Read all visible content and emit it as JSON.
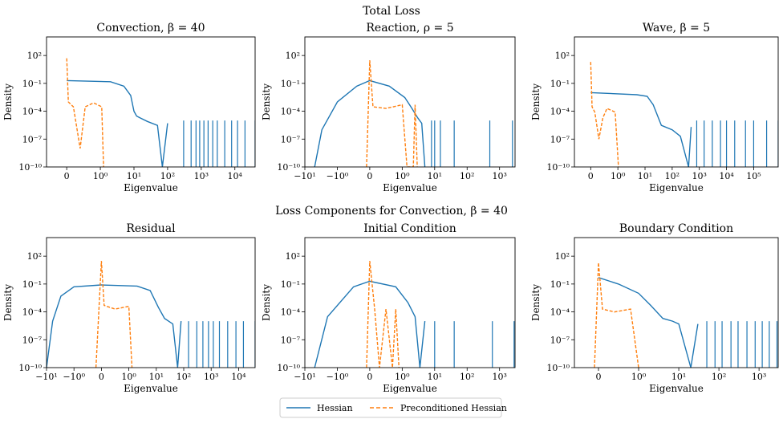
{
  "figure": {
    "row_titles": [
      "Total Loss",
      "Loss Components for Convection, β = 40"
    ],
    "legend": [
      {
        "label": "Hessian",
        "color": "#1f77b4",
        "dash": "solid"
      },
      {
        "label": "Preconditioned Hessian",
        "color": "#ff7f0e",
        "dash": "dashed"
      }
    ]
  },
  "chart_data": [
    {
      "type": "line",
      "title": "Convection, β = 40",
      "xlabel": "Eigenvalue",
      "ylabel": "Density",
      "xscale": "symlog",
      "yscale": "log",
      "ylim": [
        1e-10,
        10000
      ],
      "xlim": [
        -0.6,
        40000
      ],
      "xticks": [
        "0",
        "10⁰",
        "10¹",
        "10²",
        "10³",
        "10⁴"
      ],
      "yticks": [
        "10⁻¹⁰",
        "10⁻⁷",
        "10⁻⁴",
        "10⁻¹",
        "10²"
      ],
      "series": [
        {
          "name": "Hessian",
          "points": [
            [
              0,
              0.2
            ],
            [
              2,
              0.15
            ],
            [
              5,
              0.05
            ],
            [
              8,
              0.005
            ],
            [
              10,
              0.0001
            ],
            [
              12,
              3e-05
            ],
            [
              15,
              2e-05
            ],
            [
              25,
              8e-06
            ],
            [
              50,
              3e-06
            ],
            [
              70,
              1e-10
            ],
            [
              100,
              5e-06
            ]
          ],
          "spikes": [
            300,
            500,
            700,
            900,
            1200,
            1600,
            2200,
            3000,
            5000,
            8000,
            12000,
            20000,
            40000
          ]
        },
        {
          "name": "Preconditioned Hessian",
          "points": [
            [
              0,
              50
            ],
            [
              0.05,
              0.001
            ],
            [
              0.2,
              0.0003
            ],
            [
              0.4,
              1e-08
            ],
            [
              0.55,
              0.0003
            ],
            [
              0.8,
              0.0008
            ],
            [
              1.1,
              0.0003
            ],
            [
              1.25,
              1e-10
            ]
          ]
        }
      ]
    },
    {
      "type": "line",
      "title": "Reaction, ρ = 5",
      "xlabel": "Eigenvalue",
      "ylabel": "Density",
      "xscale": "symlog",
      "yscale": "log",
      "ylim": [
        1e-10,
        10000
      ],
      "xlim": [
        -10,
        3000
      ],
      "xticks": [
        "−10¹",
        "−10⁰",
        "0",
        "10⁰",
        "10¹",
        "10²",
        "10³"
      ],
      "yticks": [
        "10⁻¹⁰",
        "10⁻⁷",
        "10⁻⁴",
        "10⁻¹",
        "10²"
      ],
      "series": [
        {
          "name": "Hessian",
          "points": [
            [
              -5,
              1e-10
            ],
            [
              -3,
              1e-06
            ],
            [
              -1,
              0.001
            ],
            [
              -0.4,
              0.05
            ],
            [
              0,
              0.2
            ],
            [
              0.6,
              0.05
            ],
            [
              1.2,
              0.003
            ],
            [
              2,
              0.0002
            ],
            [
              3,
              2e-05
            ],
            [
              4,
              5e-06
            ],
            [
              5,
              1e-10
            ]
          ],
          "spikes": [
            8,
            10,
            15,
            40,
            500,
            2500
          ]
        },
        {
          "name": "Preconditioned Hessian",
          "points": [
            [
              -0.1,
              1e-10
            ],
            [
              0,
              30
            ],
            [
              0.1,
              0.0003
            ],
            [
              0.5,
              0.0002
            ],
            [
              1,
              0.0005
            ],
            [
              1.4,
              1e-10
            ],
            [
              2.2,
              1e-10
            ],
            [
              2.5,
              0.0005
            ],
            [
              2.9,
              1e-10
            ]
          ]
        }
      ]
    },
    {
      "type": "line",
      "title": "Wave, β = 5",
      "xlabel": "Eigenvalue",
      "ylabel": "Density",
      "xscale": "symlog",
      "yscale": "log",
      "ylim": [
        1e-10,
        10000
      ],
      "xlim": [
        -0.6,
        800000
      ],
      "xticks": [
        "0",
        "10⁰",
        "10¹",
        "10²",
        "10³",
        "10⁴",
        "10⁵"
      ],
      "yticks": [
        "10⁻¹⁰",
        "10⁻⁷",
        "10⁻⁴",
        "10⁻¹",
        "10²"
      ],
      "series": [
        {
          "name": "Hessian",
          "points": [
            [
              0,
              0.01
            ],
            [
              5,
              0.006
            ],
            [
              12,
              0.004
            ],
            [
              20,
              0.0005
            ],
            [
              40,
              3e-06
            ],
            [
              100,
              1e-06
            ],
            [
              200,
              2e-07
            ],
            [
              400,
              1e-10
            ],
            [
              500,
              2e-06
            ]
          ],
          "spikes": [
            800,
            1500,
            3000,
            6000,
            10000,
            20000,
            50000,
            100000,
            300000,
            800000
          ]
        },
        {
          "name": "Preconditioned Hessian",
          "points": [
            [
              0,
              20
            ],
            [
              0.05,
              0.0003
            ],
            [
              0.15,
              8e-05
            ],
            [
              0.3,
              1e-07
            ],
            [
              0.45,
              2e-05
            ],
            [
              0.6,
              0.0002
            ],
            [
              0.9,
              8e-05
            ],
            [
              1.05,
              1e-10
            ]
          ]
        }
      ]
    },
    {
      "type": "line",
      "title": "Residual",
      "xlabel": "Eigenvalue",
      "ylabel": "Density",
      "xscale": "symlog",
      "yscale": "log",
      "ylim": [
        1e-10,
        10000
      ],
      "xlim": [
        -10,
        40000
      ],
      "xticks": [
        "−10¹",
        "−10⁰",
        "0",
        "10⁰",
        "10¹",
        "10²",
        "10³",
        "10⁴"
      ],
      "yticks": [
        "10⁻¹⁰",
        "10⁻⁷",
        "10⁻⁴",
        "10⁻¹",
        "10²"
      ],
      "series": [
        {
          "name": "Hessian",
          "points": [
            [
              -10,
              1e-10
            ],
            [
              -6,
              1e-05
            ],
            [
              -3,
              0.005
            ],
            [
              -1,
              0.05
            ],
            [
              0,
              0.08
            ],
            [
              2,
              0.06
            ],
            [
              6,
              0.02
            ],
            [
              12,
              0.0003
            ],
            [
              20,
              2e-05
            ],
            [
              40,
              5e-06
            ],
            [
              60,
              1e-10
            ],
            [
              80,
              1e-05
            ]
          ],
          "spikes": [
            150,
            300,
            500,
            800,
            1200,
            2000,
            4000,
            8000,
            15000,
            40000
          ]
        },
        {
          "name": "Preconditioned Hessian",
          "points": [
            [
              -0.2,
              1e-10
            ],
            [
              0,
              30
            ],
            [
              0.1,
              0.0005
            ],
            [
              0.5,
              0.0002
            ],
            [
              1,
              0.0004
            ],
            [
              1.3,
              1e-10
            ]
          ]
        }
      ]
    },
    {
      "type": "line",
      "title": "Initial Condition",
      "xlabel": "Eigenvalue",
      "ylabel": "Density",
      "xscale": "symlog",
      "yscale": "log",
      "ylim": [
        1e-10,
        10000
      ],
      "xlim": [
        -10,
        3000
      ],
      "xticks": [
        "−10¹",
        "−10⁰",
        "0",
        "10⁰",
        "10¹",
        "10²",
        "10³"
      ],
      "yticks": [
        "10⁻¹⁰",
        "10⁻⁷",
        "10⁻⁴",
        "10⁻¹",
        "10²"
      ],
      "series": [
        {
          "name": "Hessian",
          "points": [
            [
              -5,
              1e-10
            ],
            [
              -2,
              3e-05
            ],
            [
              -0.5,
              0.05
            ],
            [
              0,
              0.2
            ],
            [
              0.8,
              0.05
            ],
            [
              1.5,
              0.001
            ],
            [
              2.5,
              3e-05
            ],
            [
              3.5,
              1e-10
            ],
            [
              5,
              1e-05
            ]
          ],
          "spikes": [
            10,
            40,
            600,
            2800
          ]
        },
        {
          "name": "Preconditioned Hessian",
          "points": [
            [
              -0.1,
              1e-10
            ],
            [
              0,
              30
            ],
            [
              0.15,
              0.0002
            ],
            [
              0.3,
              1e-10
            ],
            [
              0.5,
              0.0002
            ],
            [
              0.7,
              1e-10
            ],
            [
              0.8,
              0.0002
            ],
            [
              0.9,
              1e-10
            ]
          ]
        }
      ]
    },
    {
      "type": "line",
      "title": "Boundary Condition",
      "xlabel": "Eigenvalue",
      "ylabel": "Density",
      "xscale": "symlog",
      "yscale": "log",
      "ylim": [
        1e-10,
        10000
      ],
      "xlim": [
        -0.6,
        3000
      ],
      "xticks": [
        "0",
        "10⁰",
        "10¹",
        "10²",
        "10³"
      ],
      "yticks": [
        "10⁻¹⁰",
        "10⁻⁷",
        "10⁻⁴",
        "10⁻¹",
        "10²"
      ],
      "series": [
        {
          "name": "Hessian",
          "points": [
            [
              0,
              0.5
            ],
            [
              0.5,
              0.1
            ],
            [
              1,
              0.01
            ],
            [
              2,
              0.0005
            ],
            [
              4,
              2e-05
            ],
            [
              7,
              1e-05
            ],
            [
              10,
              5e-06
            ],
            [
              20,
              1e-10
            ],
            [
              30,
              5e-06
            ]
          ],
          "spikes": [
            50,
            80,
            120,
            200,
            300,
            500,
            800,
            1200,
            1800,
            2800
          ]
        },
        {
          "name": "Preconditioned Hessian",
          "points": [
            [
              -0.1,
              1e-10
            ],
            [
              0,
              20
            ],
            [
              0.1,
              0.0002
            ],
            [
              0.4,
              0.0001
            ],
            [
              0.8,
              0.0002
            ],
            [
              1,
              1e-10
            ]
          ]
        }
      ]
    }
  ]
}
